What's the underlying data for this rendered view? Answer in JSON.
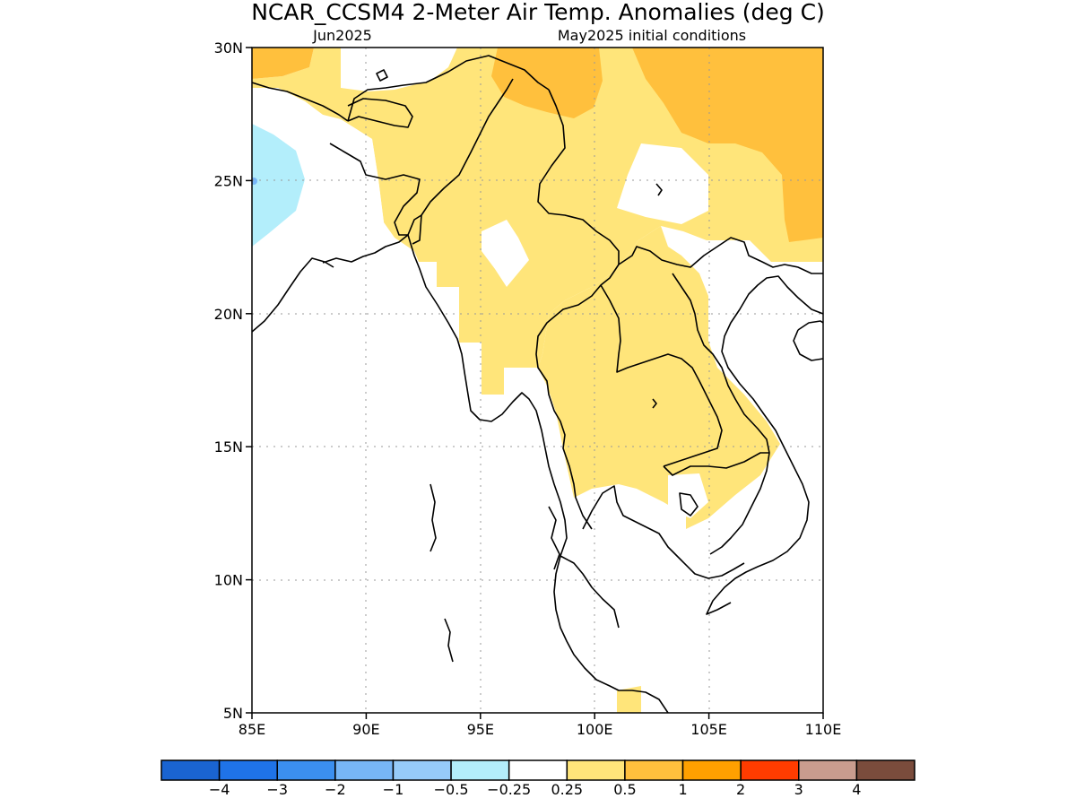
{
  "title": "NCAR_CCSM4 2-Meter Air Temp. Anomalies (deg C)",
  "subtitle_left": "Jun2025",
  "subtitle_right": "May2025 initial conditions",
  "map": {
    "lon_range": [
      85,
      110
    ],
    "lat_range": [
      5,
      30
    ],
    "lon_ticks": [
      {
        "value": 85,
        "label": "85E"
      },
      {
        "value": 90,
        "label": "90E"
      },
      {
        "value": 95,
        "label": "95E"
      },
      {
        "value": 100,
        "label": "100E"
      },
      {
        "value": 105,
        "label": "105E"
      },
      {
        "value": 110,
        "label": "110E"
      }
    ],
    "lat_ticks": [
      {
        "value": 5,
        "label": "5N"
      },
      {
        "value": 10,
        "label": "10N"
      },
      {
        "value": 15,
        "label": "15N"
      },
      {
        "value": 20,
        "label": "20N"
      },
      {
        "value": 25,
        "label": "25N"
      },
      {
        "value": 30,
        "label": "30N"
      }
    ],
    "grid": true
  },
  "colorbar": {
    "colors": [
      "#1a64d1",
      "#1f73e8",
      "#3b8ff0",
      "#77b6f7",
      "#96cbf9",
      "#b3eefb",
      "#ffffff",
      "#ffe57a",
      "#ffc03d",
      "#ffa000",
      "#ff3c00",
      "#c99c8e",
      "#7a4c3c"
    ],
    "labels": [
      "−4",
      "−3",
      "−2",
      "−1",
      "−0.5",
      "−0.25",
      "0.25",
      "0.5",
      "1",
      "2",
      "3",
      "4"
    ]
  }
}
